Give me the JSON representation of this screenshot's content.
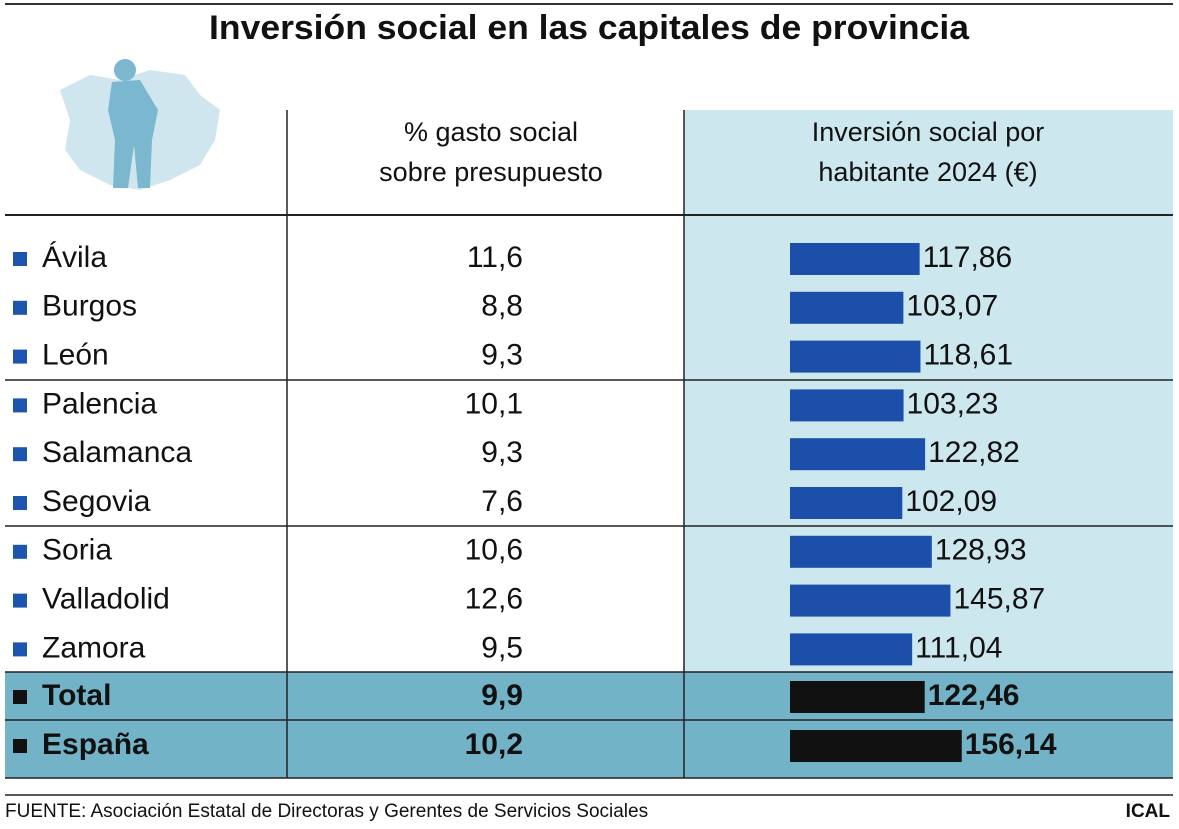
{
  "title": "Inversión social en las capitales de provincia",
  "columns": [
    [
      "% gasto social",
      "sobre presupuesto"
    ],
    [
      "Inversión social por",
      "habitante 2024 (€)"
    ]
  ],
  "rows": [
    {
      "name": "Ávila",
      "pct": "11,6",
      "value": 117.86,
      "value_label": "117,86"
    },
    {
      "name": "Burgos",
      "pct": "8,8",
      "value": 103.07,
      "value_label": "103,07"
    },
    {
      "name": "León",
      "pct": "9,3",
      "value": 118.61,
      "value_label": "118,61"
    },
    {
      "name": "Palencia",
      "pct": "10,1",
      "value": 103.23,
      "value_label": "103,23"
    },
    {
      "name": "Salamanca",
      "pct": "9,3",
      "value": 122.82,
      "value_label": "122,82"
    },
    {
      "name": "Segovia",
      "pct": "7,6",
      "value": 102.09,
      "value_label": "102,09"
    },
    {
      "name": "Soria",
      "pct": "10,6",
      "value": 128.93,
      "value_label": "128,93"
    },
    {
      "name": "Valladolid",
      "pct": "12,6",
      "value": 145.87,
      "value_label": "145,87"
    },
    {
      "name": "Zamora",
      "pct": "9,5",
      "value": 111.04,
      "value_label": "111,04"
    }
  ],
  "totals": [
    {
      "name": "Total",
      "pct": "9,9",
      "value": 122.46,
      "value_label": "122,46"
    },
    {
      "name": "España",
      "pct": "10,2",
      "value": 156.14,
      "value_label": "156,14"
    }
  ],
  "source": "FUENTE: Asociación Estatal de Directoras y Gerentes de Servicios Sociales",
  "brand": "ICAL"
}
